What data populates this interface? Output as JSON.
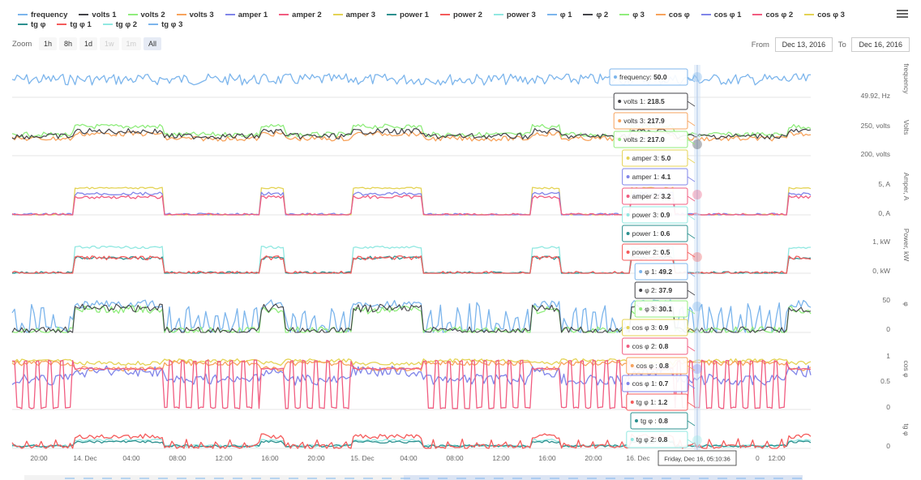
{
  "legend": [
    {
      "name": "frequency",
      "color": "#7cb5ec"
    },
    {
      "name": "volts 1",
      "color": "#434348"
    },
    {
      "name": "volts 2",
      "color": "#90ed7d"
    },
    {
      "name": "volts 3",
      "color": "#f7a35c"
    },
    {
      "name": "amper 1",
      "color": "#8085e9"
    },
    {
      "name": "amper 2",
      "color": "#f15c80"
    },
    {
      "name": "amper 3",
      "color": "#e4d354"
    },
    {
      "name": "power 1",
      "color": "#2b908f"
    },
    {
      "name": "power 2",
      "color": "#f45b5b"
    },
    {
      "name": "power 3",
      "color": "#91e8e1"
    },
    {
      "name": "φ 1",
      "color": "#7cb5ec"
    },
    {
      "name": "φ 2",
      "color": "#434348"
    },
    {
      "name": "φ 3",
      "color": "#90ed7d"
    },
    {
      "name": "cos φ",
      "color": "#f7a35c"
    },
    {
      "name": "cos φ 1",
      "color": "#8085e9"
    },
    {
      "name": "cos φ 2",
      "color": "#f15c80"
    },
    {
      "name": "cos φ 3",
      "color": "#e4d354"
    },
    {
      "name": "tg φ",
      "color": "#2b908f"
    },
    {
      "name": "tg φ 1",
      "color": "#f45b5b"
    },
    {
      "name": "tg φ 2",
      "color": "#91e8e1"
    },
    {
      "name": "tg φ 3",
      "color": "#7cb5ec"
    }
  ],
  "menu_icon": "hamburger-menu-icon",
  "zoom": {
    "label": "Zoom",
    "buttons": [
      {
        "label": "1h",
        "disabled": false
      },
      {
        "label": "8h",
        "disabled": false
      },
      {
        "label": "1d",
        "disabled": false
      },
      {
        "label": "1w",
        "disabled": true
      },
      {
        "label": "1m",
        "disabled": true
      },
      {
        "label": "All",
        "disabled": false,
        "active": true
      }
    ]
  },
  "range": {
    "from_label": "From",
    "from_value": "Dec 13, 2016",
    "to_label": "To",
    "to_value": "Dec 16, 2016"
  },
  "crosshair_label": "Friday, Dec 16, 05:10:36",
  "chart_data": {
    "type": "line",
    "x_ticks": [
      "20:00",
      "14. Dec",
      "04:00",
      "08:00",
      "12:00",
      "16:00",
      "20:00",
      "15. Dec",
      "04:00",
      "08:00",
      "12:00",
      "16:00",
      "20:00",
      "16. Dec",
      "",
      "12:00"
    ],
    "panes": [
      {
        "title": "frequency",
        "y_ticks": [
          "49.92, Hz"
        ]
      },
      {
        "title": "Volts",
        "y_ticks": [
          "250, volts",
          "200, volts"
        ]
      },
      {
        "title": "Amper, A",
        "y_ticks": [
          "5, A",
          "0, A"
        ]
      },
      {
        "title": "Power, kW",
        "y_ticks": [
          "1, kW",
          "0, kW"
        ]
      },
      {
        "title": "φ",
        "y_ticks": [
          "50",
          "0"
        ]
      },
      {
        "title": "cos φ",
        "y_ticks": [
          "1",
          "0.5",
          "0"
        ]
      },
      {
        "title": "tg φ",
        "y_ticks": [
          "0"
        ]
      }
    ],
    "tooltips": [
      {
        "series": "frequency",
        "value": "50.0",
        "color": "#7cb5ec"
      },
      {
        "series": "volts 1",
        "value": "218.5",
        "color": "#434348"
      },
      {
        "series": "volts 3",
        "value": "217.9",
        "color": "#f7a35c"
      },
      {
        "series": "volts 2",
        "value": "217.0",
        "color": "#90ed7d"
      },
      {
        "series": "amper 3",
        "value": "5.0",
        "color": "#e4d354"
      },
      {
        "series": "amper 1",
        "value": "4.1",
        "color": "#8085e9"
      },
      {
        "series": "amper 2",
        "value": "3.2",
        "color": "#f15c80"
      },
      {
        "series": "power 3",
        "value": "0.9",
        "color": "#91e8e1"
      },
      {
        "series": "power 1",
        "value": "0.6",
        "color": "#2b908f"
      },
      {
        "series": "power 2",
        "value": "0.5",
        "color": "#f45b5b"
      },
      {
        "series": "φ 1",
        "value": "49.2",
        "color": "#7cb5ec"
      },
      {
        "series": "φ 2",
        "value": "37.9",
        "color": "#434348"
      },
      {
        "series": "φ 3",
        "value": "30.1",
        "color": "#90ed7d"
      },
      {
        "series": "cos φ 3",
        "value": "0.9",
        "color": "#e4d354"
      },
      {
        "series": "cos φ 2",
        "value": "0.8",
        "color": "#f15c80"
      },
      {
        "series": "cos φ ",
        "value": "0.8",
        "color": "#f7a35c"
      },
      {
        "series": "cos φ 1",
        "value": "0.7",
        "color": "#8085e9"
      },
      {
        "series": "tg φ 1",
        "value": "1.2",
        "color": "#f45b5b"
      },
      {
        "series": "tg φ ",
        "value": "0.8",
        "color": "#2b908f"
      },
      {
        "series": "tg φ 2",
        "value": "0.8",
        "color": "#91e8e1"
      }
    ]
  }
}
